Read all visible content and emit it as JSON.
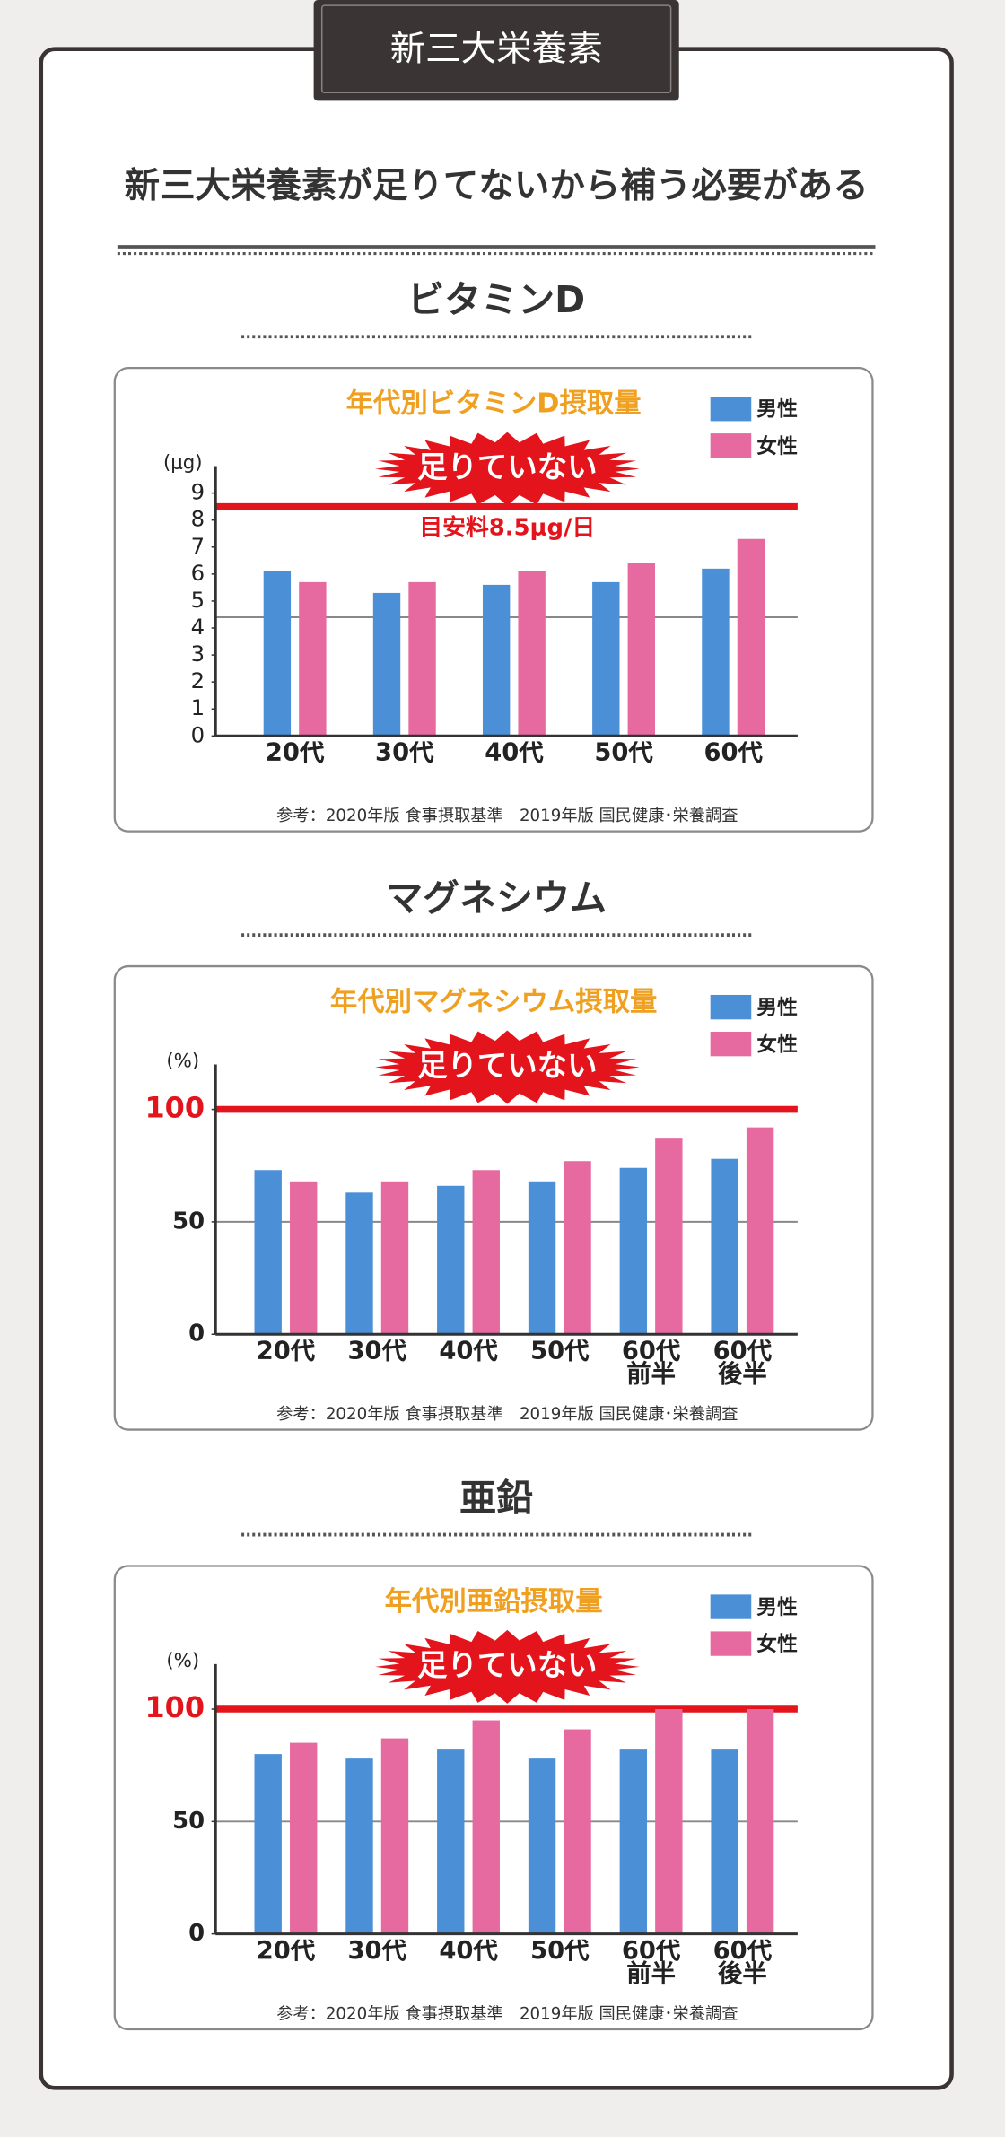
{
  "banner": "新三大栄養素",
  "headline": "新三大栄養素が足りてないから補う必要がある",
  "chart_data": [
    {
      "type": "bar",
      "heading": "ビタミンD",
      "title": "年代別ビタミンD摂取量",
      "annotation": "足りていない",
      "y_label": "(μg)",
      "categories": [
        "20代",
        "30代",
        "40代",
        "50代",
        "60代"
      ],
      "series": [
        {
          "name": "男性",
          "color": "#4b8fd6",
          "values": [
            6.1,
            5.3,
            5.6,
            5.7,
            6.2
          ]
        },
        {
          "name": "女性",
          "color": "#e66aa0",
          "values": [
            5.7,
            5.7,
            6.1,
            6.4,
            7.3
          ]
        }
      ],
      "ylim": [
        0,
        10
      ],
      "yticks": [
        0,
        1,
        2,
        3,
        4,
        5,
        6,
        7,
        8,
        9
      ],
      "reference_lines": [
        {
          "value": 8.5,
          "label": "目安料8.5μg/日",
          "color": "#e3141b"
        },
        {
          "value": 4.4,
          "color": "#888888"
        }
      ],
      "note": "参考：2020年版 食事摂取基準　2019年版 国民健康･栄養調査"
    },
    {
      "type": "bar",
      "heading": "マグネシウム",
      "title": "年代別マグネシウム摂取量",
      "annotation": "足りていない",
      "y_label": "(%)",
      "categories": [
        "20代",
        "30代",
        "40代",
        "50代",
        "60代\n前半",
        "60代\n後半"
      ],
      "series": [
        {
          "name": "男性",
          "color": "#4b8fd6",
          "values": [
            73,
            63,
            66,
            68,
            74,
            78
          ]
        },
        {
          "name": "女性",
          "color": "#e66aa0",
          "values": [
            68,
            68,
            73,
            77,
            87,
            92
          ]
        }
      ],
      "ylim": [
        0,
        120
      ],
      "yticks": [
        0,
        50,
        100
      ],
      "reference_lines": [
        {
          "value": 100,
          "color": "#e3141b"
        },
        {
          "value": 50,
          "color": "#888888"
        }
      ],
      "note": "参考：2020年版 食事摂取基準　2019年版 国民健康･栄養調査"
    },
    {
      "type": "bar",
      "heading": "亜鉛",
      "title": "年代別亜鉛摂取量",
      "annotation": "足りていない",
      "y_label": "(%)",
      "categories": [
        "20代",
        "30代",
        "40代",
        "50代",
        "60代\n前半",
        "60代\n後半"
      ],
      "series": [
        {
          "name": "男性",
          "color": "#4b8fd6",
          "values": [
            80,
            78,
            82,
            78,
            82,
            82
          ]
        },
        {
          "name": "女性",
          "color": "#e66aa0",
          "values": [
            85,
            87,
            95,
            91,
            100,
            100
          ]
        }
      ],
      "ylim": [
        0,
        120
      ],
      "yticks": [
        0,
        50,
        100
      ],
      "reference_lines": [
        {
          "value": 100,
          "color": "#e3141b"
        },
        {
          "value": 50,
          "color": "#888888"
        }
      ],
      "note": "参考：2020年版 食事摂取基準　2019年版 国民健康･栄養調査"
    }
  ]
}
